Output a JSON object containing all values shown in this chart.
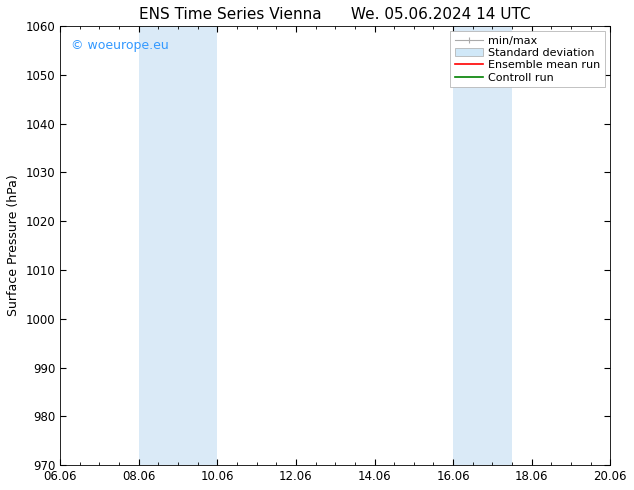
{
  "title_left": "ENS Time Series Vienna",
  "title_right": "We. 05.06.2024 14 UTC",
  "ylabel": "Surface Pressure (hPa)",
  "ylim": [
    970,
    1060
  ],
  "yticks": [
    970,
    980,
    990,
    1000,
    1010,
    1020,
    1030,
    1040,
    1050,
    1060
  ],
  "xtick_labels": [
    "06.06",
    "08.06",
    "10.06",
    "12.06",
    "14.06",
    "16.06",
    "18.06",
    "20.06"
  ],
  "xtick_positions": [
    0,
    2,
    4,
    6,
    8,
    10,
    12,
    14
  ],
  "xlim": [
    0,
    14
  ],
  "shaded_bands": [
    {
      "x_start": 2,
      "x_end": 4
    },
    {
      "x_start": 10,
      "x_end": 11.5
    }
  ],
  "shaded_color": "#daeaf7",
  "watermark_text": "© woeurope.eu",
  "watermark_color": "#3399ff",
  "legend_items": [
    {
      "label": "min/max",
      "type": "minmax"
    },
    {
      "label": "Standard deviation",
      "type": "stddev"
    },
    {
      "label": "Ensemble mean run",
      "type": "line",
      "color": "red",
      "lw": 1.2
    },
    {
      "label": "Controll run",
      "type": "line",
      "color": "green",
      "lw": 1.2
    }
  ],
  "minmax_color": "#aaaaaa",
  "stddev_color": "#d0e8f8",
  "stddev_edge": "#aaaaaa",
  "bg_color": "#ffffff",
  "title_fontsize": 11,
  "tick_fontsize": 8.5,
  "ylabel_fontsize": 9,
  "legend_fontsize": 8,
  "watermark_fontsize": 9
}
